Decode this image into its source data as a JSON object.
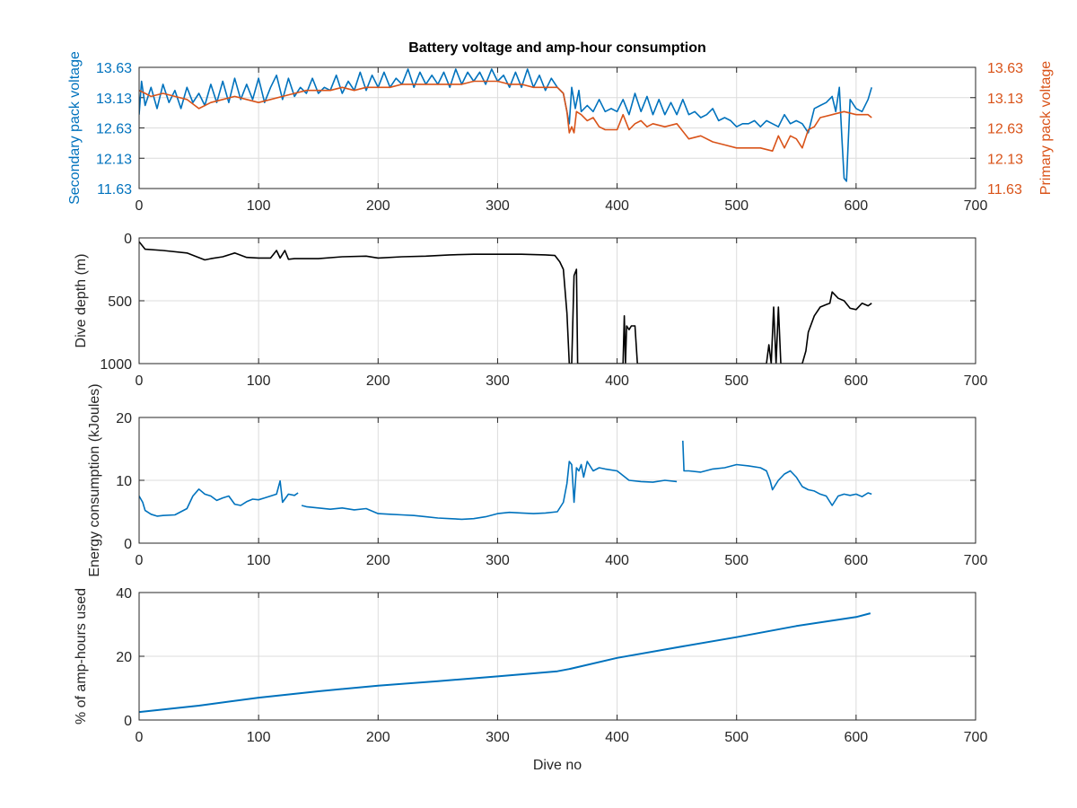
{
  "figure": {
    "title": "Battery voltage and amp-hour consumption",
    "colors": {
      "blue": "#0072BD",
      "orange": "#D95319",
      "black": "#000000",
      "axis": "#262626",
      "grid": "#dcdcdc"
    }
  },
  "chart_data": [
    {
      "type": "line",
      "title": "Battery voltage and amp-hour consumption",
      "xlabel": "",
      "ylabel": "Secondary pack voltage",
      "ylabel_right": "Primary pack voltage",
      "xlim": [
        0,
        700
      ],
      "ylim": [
        11.63,
        13.63
      ],
      "xticks": [
        "0",
        "100",
        "200",
        "300",
        "400",
        "500",
        "600",
        "700"
      ],
      "yticks": [
        "11.63",
        "12.13",
        "12.63",
        "13.13",
        "13.63"
      ],
      "yticks_right": [
        "11.63",
        "12.13",
        "12.63",
        "13.13",
        "13.63"
      ],
      "grid": true,
      "series": [
        {
          "axis": "left",
          "color": "#0072BD",
          "x": [
            0,
            2,
            5,
            10,
            15,
            20,
            25,
            30,
            35,
            40,
            45,
            50,
            55,
            60,
            65,
            70,
            75,
            80,
            85,
            90,
            95,
            100,
            105,
            110,
            115,
            120,
            125,
            130,
            135,
            140,
            145,
            150,
            155,
            160,
            165,
            170,
            175,
            180,
            185,
            190,
            195,
            200,
            205,
            210,
            215,
            220,
            225,
            230,
            235,
            240,
            245,
            250,
            255,
            260,
            265,
            270,
            275,
            280,
            285,
            290,
            295,
            300,
            305,
            310,
            315,
            320,
            325,
            330,
            335,
            340,
            345,
            350,
            355,
            360,
            362,
            365,
            368,
            370,
            375,
            380,
            385,
            390,
            395,
            400,
            405,
            410,
            415,
            420,
            425,
            430,
            435,
            440,
            445,
            450,
            455,
            460,
            465,
            470,
            475,
            480,
            485,
            490,
            495,
            500,
            505,
            510,
            515,
            520,
            525,
            530,
            535,
            540,
            545,
            550,
            555,
            560,
            565,
            570,
            575,
            580,
            583,
            586,
            588,
            590,
            592,
            595,
            600,
            605,
            610,
            613
          ],
          "y": [
            12.85,
            13.4,
            13.0,
            13.3,
            12.95,
            13.35,
            13.05,
            13.25,
            12.95,
            13.3,
            13.05,
            13.2,
            13.0,
            13.35,
            13.05,
            13.4,
            13.05,
            13.45,
            13.1,
            13.35,
            13.1,
            13.45,
            13.05,
            13.3,
            13.5,
            13.1,
            13.45,
            13.15,
            13.3,
            13.2,
            13.45,
            13.2,
            13.3,
            13.25,
            13.5,
            13.2,
            13.4,
            13.25,
            13.55,
            13.25,
            13.5,
            13.3,
            13.55,
            13.3,
            13.45,
            13.35,
            13.6,
            13.3,
            13.55,
            13.35,
            13.5,
            13.35,
            13.55,
            13.3,
            13.6,
            13.35,
            13.55,
            13.4,
            13.55,
            13.35,
            13.6,
            13.4,
            13.5,
            13.3,
            13.55,
            13.3,
            13.6,
            13.3,
            13.5,
            13.25,
            13.45,
            13.3,
            13.2,
            12.7,
            13.3,
            12.95,
            13.25,
            12.9,
            13.0,
            12.9,
            13.1,
            12.9,
            12.95,
            12.9,
            13.1,
            12.85,
            13.2,
            12.9,
            13.15,
            12.85,
            13.1,
            12.85,
            13.05,
            12.85,
            13.1,
            12.85,
            12.9,
            12.8,
            12.85,
            12.95,
            12.75,
            12.8,
            12.75,
            12.65,
            12.7,
            12.7,
            12.75,
            12.65,
            12.75,
            12.7,
            12.65,
            12.85,
            12.7,
            12.75,
            12.7,
            12.55,
            12.95,
            13.0,
            13.05,
            13.15,
            12.9,
            13.3,
            12.5,
            11.8,
            11.75,
            13.1,
            12.95,
            12.9,
            13.1,
            13.3
          ]
        },
        {
          "axis": "right",
          "color": "#D95319",
          "x": [
            0,
            5,
            10,
            20,
            30,
            40,
            50,
            60,
            70,
            80,
            90,
            100,
            110,
            120,
            130,
            140,
            150,
            160,
            170,
            180,
            190,
            200,
            210,
            220,
            230,
            240,
            250,
            260,
            270,
            280,
            290,
            300,
            310,
            320,
            330,
            340,
            350,
            355,
            358,
            360,
            362,
            364,
            366,
            370,
            375,
            380,
            385,
            390,
            395,
            400,
            405,
            410,
            415,
            420,
            425,
            430,
            440,
            450,
            460,
            470,
            480,
            490,
            500,
            510,
            520,
            530,
            535,
            540,
            545,
            550,
            555,
            560,
            565,
            570,
            580,
            590,
            600,
            610,
            613
          ],
          "y": [
            13.25,
            13.2,
            13.15,
            13.2,
            13.15,
            13.1,
            12.95,
            13.05,
            13.1,
            13.15,
            13.1,
            13.05,
            13.1,
            13.15,
            13.2,
            13.25,
            13.25,
            13.25,
            13.3,
            13.25,
            13.3,
            13.3,
            13.3,
            13.35,
            13.35,
            13.35,
            13.35,
            13.35,
            13.35,
            13.4,
            13.4,
            13.4,
            13.35,
            13.35,
            13.3,
            13.3,
            13.3,
            13.2,
            12.9,
            12.55,
            12.65,
            12.55,
            12.9,
            12.85,
            12.75,
            12.8,
            12.65,
            12.6,
            12.6,
            12.6,
            12.85,
            12.6,
            12.7,
            12.75,
            12.65,
            12.7,
            12.65,
            12.7,
            12.45,
            12.5,
            12.4,
            12.35,
            12.3,
            12.3,
            12.3,
            12.25,
            12.5,
            12.3,
            12.5,
            12.45,
            12.3,
            12.6,
            12.65,
            12.8,
            12.85,
            12.9,
            12.85,
            12.85,
            12.8
          ]
        }
      ]
    },
    {
      "type": "line",
      "xlabel": "",
      "ylabel": "Dive depth (m)",
      "xlim": [
        0,
        700
      ],
      "ylim": [
        0,
        1000
      ],
      "y_reversed": true,
      "xticks": [
        "0",
        "100",
        "200",
        "300",
        "400",
        "500",
        "600",
        "700"
      ],
      "yticks": [
        "0",
        "500",
        "1000"
      ],
      "grid": true,
      "series": [
        {
          "color": "#000000",
          "x": [
            0,
            5,
            20,
            40,
            55,
            60,
            70,
            80,
            90,
            100,
            110,
            115,
            118,
            122,
            125,
            130,
            150,
            170,
            190,
            200,
            220,
            240,
            260,
            280,
            300,
            320,
            340,
            348,
            352,
            355,
            358,
            360,
            362,
            364,
            366,
            367,
            368,
            369,
            372,
            380,
            400,
            405,
            406,
            407,
            408,
            410,
            412,
            415,
            417,
            420,
            440,
            460,
            480,
            500,
            520,
            525,
            527,
            529,
            531,
            533,
            535,
            537,
            540,
            545,
            550,
            555,
            558,
            560,
            565,
            570,
            575,
            578,
            580,
            585,
            590,
            595,
            600,
            605,
            610,
            613
          ],
          "y": [
            30,
            90,
            100,
            120,
            175,
            165,
            150,
            120,
            155,
            160,
            160,
            100,
            160,
            100,
            170,
            165,
            165,
            150,
            145,
            160,
            150,
            145,
            135,
            130,
            130,
            130,
            135,
            140,
            190,
            250,
            600,
            1000,
            1000,
            300,
            250,
            1000,
            1000,
            1000,
            1000,
            1000,
            1000,
            1000,
            620,
            1000,
            700,
            730,
            700,
            700,
            1000,
            1000,
            1000,
            1000,
            1000,
            1000,
            1000,
            1000,
            850,
            1000,
            550,
            1000,
            550,
            1000,
            1000,
            1000,
            1000,
            1000,
            900,
            750,
            620,
            550,
            530,
            520,
            430,
            480,
            500,
            560,
            570,
            520,
            540,
            520
          ]
        }
      ]
    },
    {
      "type": "line",
      "xlabel": "",
      "ylabel": "Energy consumption (kJoules)",
      "xlim": [
        0,
        700
      ],
      "ylim": [
        0,
        20
      ],
      "xticks": [
        "0",
        "100",
        "200",
        "300",
        "400",
        "500",
        "600",
        "700"
      ],
      "yticks": [
        "0",
        "10",
        "20"
      ],
      "grid": true,
      "series": [
        {
          "color": "#0072BD",
          "x": [
            0,
            3,
            5,
            10,
            15,
            20,
            30,
            40,
            45,
            50,
            55,
            60,
            65,
            70,
            75,
            80,
            85,
            90,
            95,
            100,
            105,
            110,
            115,
            118,
            120,
            125,
            130,
            133
          ],
          "y": [
            7.5,
            6.5,
            5.2,
            4.6,
            4.3,
            4.4,
            4.5,
            5.5,
            7.5,
            8.6,
            7.8,
            7.5,
            6.8,
            7.2,
            7.5,
            6.2,
            6.0,
            6.6,
            7.0,
            6.9,
            7.2,
            7.5,
            7.8,
            9.9,
            6.5,
            7.8,
            7.6,
            8.0
          ]
        },
        {
          "color": "#0072BD",
          "x": [
            136,
            140,
            150,
            160,
            170,
            180,
            190,
            200,
            210,
            220,
            230,
            240,
            250,
            260,
            270,
            280,
            290,
            300,
            310,
            320,
            330,
            340,
            350,
            355,
            358,
            360,
            362,
            364,
            366,
            368,
            370,
            372,
            375,
            380,
            385,
            390,
            400,
            410,
            420,
            430,
            440,
            450
          ],
          "y": [
            6.0,
            5.8,
            5.6,
            5.4,
            5.6,
            5.3,
            5.5,
            4.7,
            4.6,
            4.5,
            4.4,
            4.2,
            4.0,
            3.9,
            3.8,
            3.9,
            4.2,
            4.7,
            4.9,
            4.8,
            4.7,
            4.8,
            5.0,
            6.5,
            9.5,
            13.0,
            12.5,
            6.5,
            12.0,
            11.5,
            12.5,
            10.5,
            13.0,
            11.5,
            12.0,
            11.8,
            11.5,
            10.0,
            9.8,
            9.7,
            10.0,
            9.8
          ]
        },
        {
          "color": "#0072BD",
          "x": [
            455,
            456,
            460,
            470,
            480,
            490,
            500,
            510,
            520,
            525,
            528,
            530,
            535,
            540,
            545,
            550,
            555,
            560,
            565,
            570,
            575,
            580,
            585,
            590,
            595,
            600,
            605,
            610,
            613
          ],
          "y": [
            16.3,
            11.5,
            11.5,
            11.3,
            11.8,
            12.0,
            12.5,
            12.3,
            12.0,
            11.5,
            10.0,
            8.5,
            10.0,
            11.0,
            11.5,
            10.5,
            9.0,
            8.5,
            8.3,
            7.8,
            7.5,
            6.0,
            7.5,
            7.8,
            7.6,
            7.8,
            7.4,
            8.0,
            7.8
          ]
        }
      ]
    },
    {
      "type": "line",
      "xlabel": "Dive no",
      "ylabel": "% of amp-hours used",
      "xlim": [
        0,
        700
      ],
      "ylim": [
        0,
        40
      ],
      "xticks": [
        "0",
        "100",
        "200",
        "300",
        "400",
        "500",
        "600",
        "700"
      ],
      "yticks": [
        "0",
        "20",
        "40"
      ],
      "grid": true,
      "series": [
        {
          "color": "#0072BD",
          "x": [
            0,
            50,
            100,
            150,
            200,
            250,
            300,
            350,
            360,
            400,
            450,
            500,
            550,
            600,
            612
          ],
          "y": [
            2.5,
            4.5,
            7.0,
            9.0,
            10.8,
            12.2,
            13.7,
            15.3,
            16.0,
            19.5,
            22.8,
            26.0,
            29.5,
            32.3,
            33.5
          ]
        }
      ]
    }
  ]
}
